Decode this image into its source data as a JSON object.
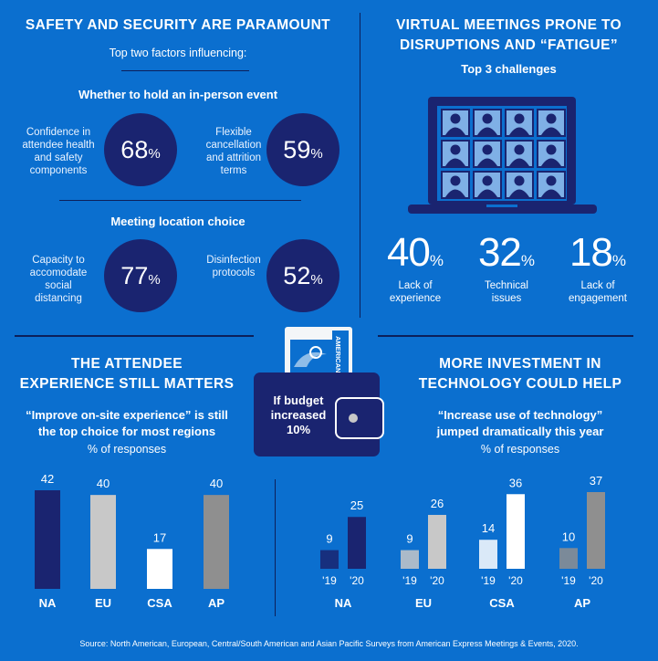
{
  "q1": {
    "title": "SAFETY AND SECURITY ARE PARAMOUNT",
    "subtitle": "Top two factors influencing:",
    "section1_title": "Whether to hold an in-person event",
    "section2_title": "Meeting location choice",
    "stats": [
      {
        "label_lines": [
          "Confidence in",
          "attendee health",
          "and safety",
          "components"
        ],
        "value": "68",
        "unit": "%"
      },
      {
        "label_lines": [
          "Flexible",
          "cancellation",
          "and attrition",
          "terms"
        ],
        "value": "59",
        "unit": "%"
      },
      {
        "label_lines": [
          "Capacity to",
          "accomodate",
          "social",
          "distancing"
        ],
        "value": "77",
        "unit": "%"
      },
      {
        "label_lines": [
          "Disinfection",
          "protocols"
        ],
        "value": "52",
        "unit": "%"
      }
    ]
  },
  "q2": {
    "title_line1": "VIRTUAL MEETINGS PRONE TO",
    "title_line2": "DISRUPTIONS AND “FATIGUE”",
    "subtitle": "Top 3 challenges",
    "icon": "laptop-video-grid-icon",
    "stats": [
      {
        "value": "40",
        "unit": "%",
        "label_lines": [
          "Lack of",
          "experience"
        ]
      },
      {
        "value": "32",
        "unit": "%",
        "label_lines": [
          "Technical",
          "issues"
        ]
      },
      {
        "value": "18",
        "unit": "%",
        "label_lines": [
          "Lack of",
          "engagement"
        ]
      }
    ]
  },
  "center_badge": {
    "icon": "wallet-with-card-icon",
    "card_text": "AMERICAN",
    "lines": [
      "If budget",
      "increased",
      "10%"
    ]
  },
  "q3": {
    "title_line1": "THE ATTENDEE",
    "title_line2": "EXPERIENCE STILL MATTERS",
    "quote_line1": "“Improve on-site experience” is still",
    "quote_line2": "the top choice for most regions",
    "unit_note": "% of responses"
  },
  "q4": {
    "title_line1": "MORE INVESTMENT IN",
    "title_line2": "TECHNOLOGY COULD HELP",
    "quote_line1": "“Increase use of technology”",
    "quote_line2": "jumped dramatically this year",
    "unit_note": "% of responses"
  },
  "source": "Source: North American, European, Central/South American and Asian Pacific Surveys from American Express Meetings & Events, 2020.",
  "colors": {
    "background": "#0b6fcf",
    "navy": "#1a2470",
    "light_gray": "#c8c8c8",
    "white": "#ffffff",
    "mid_gray": "#8f8f8f"
  },
  "chart_data": [
    {
      "type": "bar",
      "title": "“Improve on-site experience” is still the top choice for most regions",
      "ylabel": "% of responses",
      "categories": [
        "NA",
        "EU",
        "CSA",
        "AP"
      ],
      "values": [
        42,
        40,
        17,
        40
      ],
      "bar_colors": [
        "#1a2470",
        "#c8c8c8",
        "#ffffff",
        "#8f8f8f"
      ],
      "ylim": [
        0,
        45
      ]
    },
    {
      "type": "bar",
      "title": "“Increase use of technology” jumped dramatically this year",
      "ylabel": "% of responses",
      "categories": [
        "NA",
        "EU",
        "CSA",
        "AP"
      ],
      "series": [
        {
          "name": "'19",
          "values": [
            9,
            9,
            14,
            10
          ]
        },
        {
          "name": "'20",
          "values": [
            25,
            26,
            36,
            37
          ]
        }
      ],
      "bar_colors": [
        "#1a2470",
        "#c8c8c8",
        "#ffffff",
        "#8f8f8f"
      ],
      "ylim": [
        0,
        40
      ]
    }
  ]
}
